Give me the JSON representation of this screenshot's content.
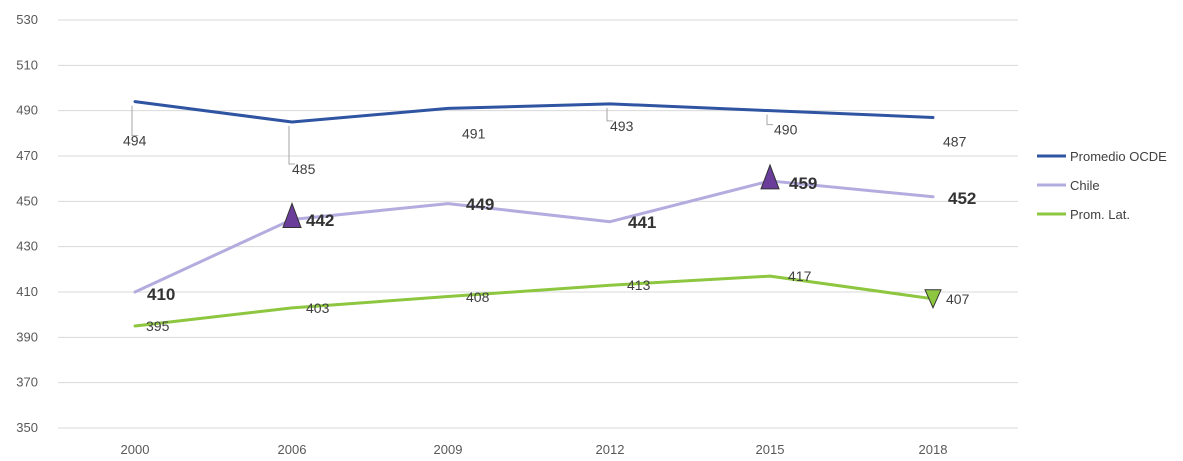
{
  "chart_data": {
    "type": "line",
    "categories": [
      "2000",
      "2006",
      "2009",
      "2012",
      "2015",
      "2018"
    ],
    "ylim": [
      350,
      530
    ],
    "yticks": [
      350,
      370,
      390,
      410,
      430,
      450,
      470,
      490,
      510,
      530
    ],
    "grid": true,
    "legend_position": "right",
    "series": [
      {
        "name": "Promedio OCDE",
        "color": "#2f54a1",
        "values": [
          494,
          485,
          491,
          493,
          490,
          487
        ]
      },
      {
        "name": "Chile",
        "color": "#b3acdf",
        "values": [
          410,
          442,
          449,
          441,
          459,
          452
        ]
      },
      {
        "name": "Prom. Lat.",
        "color": "#8dc63f",
        "values": [
          395,
          403,
          408,
          413,
          417,
          407
        ]
      }
    ],
    "markers": [
      {
        "series": "Chile",
        "category": "2006",
        "shape": "triangle-up",
        "color": "#6a3d9a"
      },
      {
        "series": "Chile",
        "category": "2015",
        "shape": "triangle-up",
        "color": "#6a3d9a"
      },
      {
        "series": "Prom. Lat.",
        "category": "2018",
        "shape": "triangle-down",
        "color": "#8dc63f"
      }
    ]
  }
}
